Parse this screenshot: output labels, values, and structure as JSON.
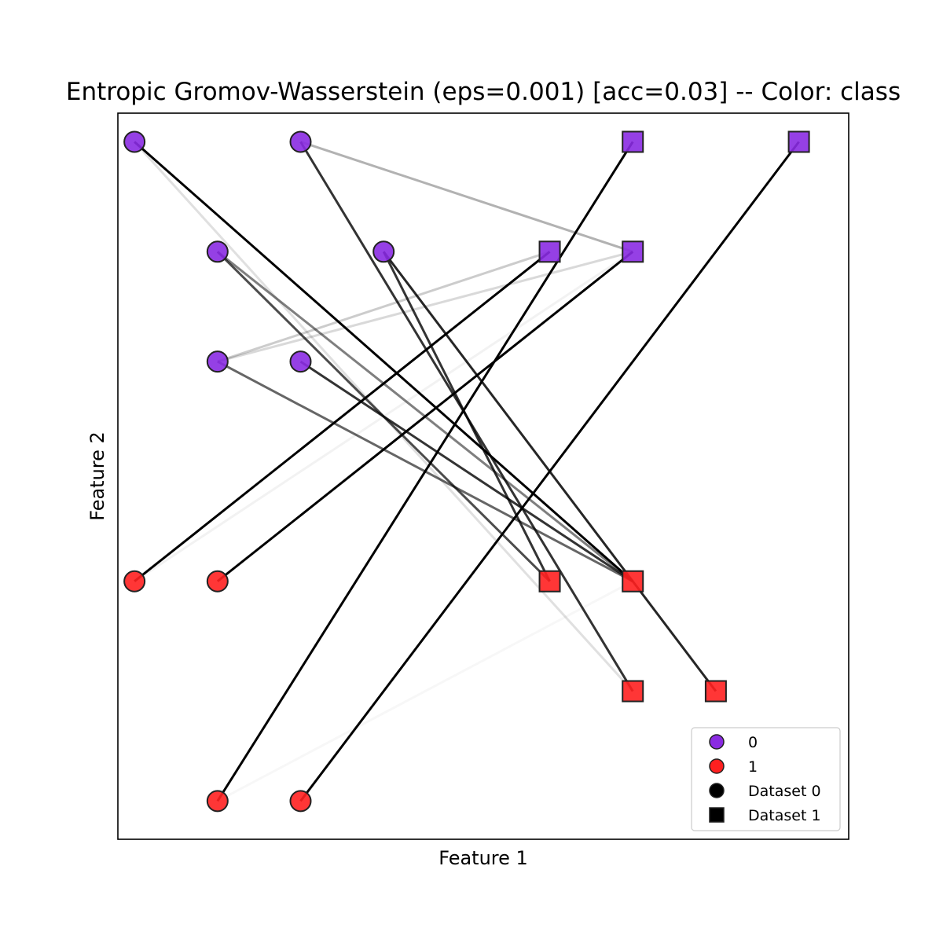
{
  "chart_data": {
    "type": "scatter",
    "title": "Entropic Gromov-Wasserstein (eps=0.001) [acc=0.03] -- Color: class",
    "xlabel": "Feature 1",
    "ylabel": "Feature 2",
    "xlim": [
      -0.2,
      8.6
    ],
    "ylim": [
      -7.3,
      0.3
    ],
    "grid": false,
    "ticks_visible": false,
    "colors": {
      "class_0": "#8a2be2",
      "class_1": "#ff2020",
      "edge": "#222222",
      "line": "#000000"
    },
    "legend": {
      "placement": "lower-right",
      "entries": [
        {
          "label": "0",
          "marker": "circle",
          "color": "#8a2be2"
        },
        {
          "label": "1",
          "marker": "circle",
          "color": "#ff2020"
        },
        {
          "label": "Dataset 0",
          "marker": "circle",
          "color": "#000000"
        },
        {
          "label": "Dataset 1",
          "marker": "square",
          "color": "#000000"
        }
      ]
    },
    "series": [
      {
        "name": "Dataset 0",
        "marker": "circle",
        "points": [
          {
            "x": 0,
            "y": 0,
            "class": 0
          },
          {
            "x": 2,
            "y": 0,
            "class": 0
          },
          {
            "x": 1,
            "y": -1.15,
            "class": 0
          },
          {
            "x": 3,
            "y": -1.15,
            "class": 0
          },
          {
            "x": 1,
            "y": -2.3,
            "class": 0
          },
          {
            "x": 2,
            "y": -2.3,
            "class": 0
          },
          {
            "x": 0,
            "y": -4.6,
            "class": 1
          },
          {
            "x": 1,
            "y": -4.6,
            "class": 1
          },
          {
            "x": 1,
            "y": -6.9,
            "class": 1
          },
          {
            "x": 2,
            "y": -6.9,
            "class": 1
          }
        ]
      },
      {
        "name": "Dataset 1",
        "marker": "square",
        "points": [
          {
            "x": 6,
            "y": 0,
            "class": 0
          },
          {
            "x": 8,
            "y": 0,
            "class": 0
          },
          {
            "x": 5,
            "y": -1.15,
            "class": 0
          },
          {
            "x": 6,
            "y": -1.15,
            "class": 0
          },
          {
            "x": 5,
            "y": -4.6,
            "class": 1
          },
          {
            "x": 6,
            "y": -4.6,
            "class": 1
          },
          {
            "x": 6,
            "y": -5.75,
            "class": 1
          },
          {
            "x": 7,
            "y": -5.75,
            "class": 1
          }
        ]
      }
    ],
    "couplings": [
      {
        "from": 0,
        "to": 5,
        "weight": 1.0
      },
      {
        "from": 0,
        "to": 6,
        "weight": 0.12
      },
      {
        "from": 1,
        "to": 3,
        "weight": 0.3
      },
      {
        "from": 1,
        "to": 6,
        "weight": 0.8
      },
      {
        "from": 2,
        "to": 4,
        "weight": 0.7
      },
      {
        "from": 2,
        "to": 5,
        "weight": 0.5
      },
      {
        "from": 3,
        "to": 4,
        "weight": 0.8
      },
      {
        "from": 3,
        "to": 7,
        "weight": 0.85
      },
      {
        "from": 4,
        "to": 2,
        "weight": 0.2
      },
      {
        "from": 4,
        "to": 3,
        "weight": 0.15
      },
      {
        "from": 4,
        "to": 5,
        "weight": 0.6
      },
      {
        "from": 5,
        "to": 5,
        "weight": 0.8
      },
      {
        "from": 6,
        "to": 2,
        "weight": 1.0
      },
      {
        "from": 7,
        "to": 3,
        "weight": 1.0
      },
      {
        "from": 8,
        "to": 0,
        "weight": 1.0
      },
      {
        "from": 9,
        "to": 1,
        "weight": 1.0
      },
      {
        "from": 6,
        "to": 3,
        "weight": 0.05
      },
      {
        "from": 8,
        "to": 5,
        "weight": 0.03
      }
    ]
  }
}
